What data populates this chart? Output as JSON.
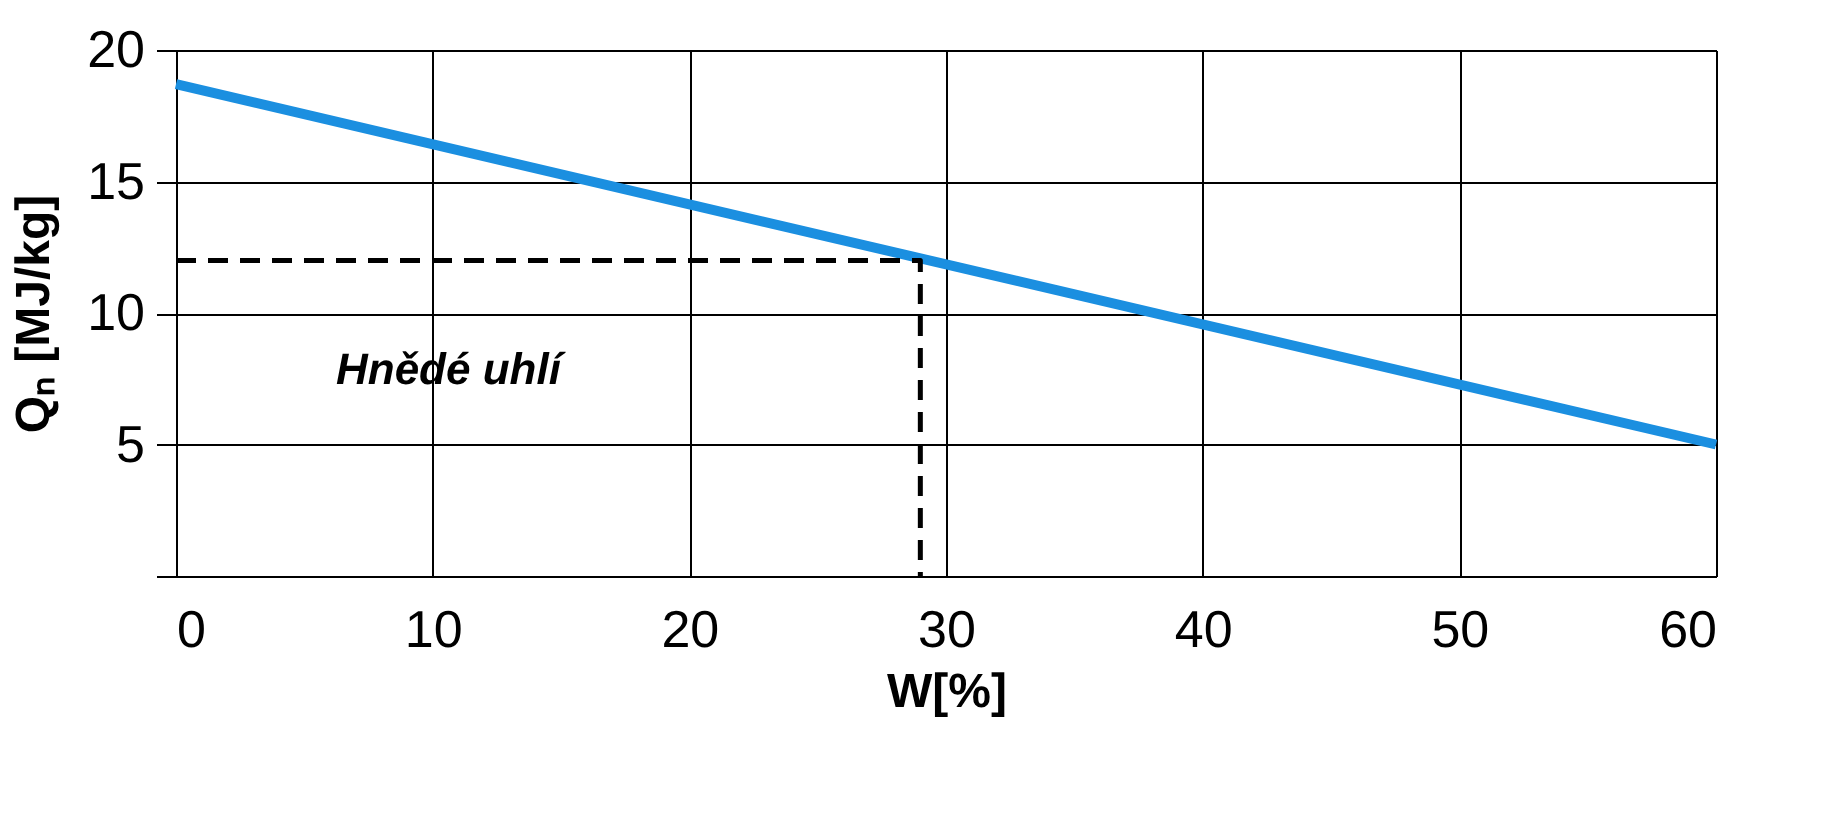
{
  "chart_data": {
    "type": "line",
    "xlabel": "W[%]",
    "ylabel": "Qₙ [MJ/kg]",
    "series": [
      {
        "x": [
          0,
          60
        ],
        "values": [
          18.7,
          5.0
        ],
        "color": "#1b8fe0",
        "line_style": "solid"
      },
      {
        "x": [
          0,
          29,
          29
        ],
        "values": [
          12,
          12,
          0
        ],
        "color": "#000000",
        "line_style": "dashed"
      }
    ],
    "xlim": [
      0,
      60
    ],
    "xticks": [
      0,
      10,
      20,
      30,
      40,
      50,
      60
    ],
    "ylim": [
      0,
      20
    ],
    "yticks": [
      {
        "value": 0,
        "label": null
      },
      5,
      10,
      15,
      20
    ],
    "grid": true,
    "marker": "none",
    "annotations": [
      "Hnědé uhlí"
    ]
  }
}
